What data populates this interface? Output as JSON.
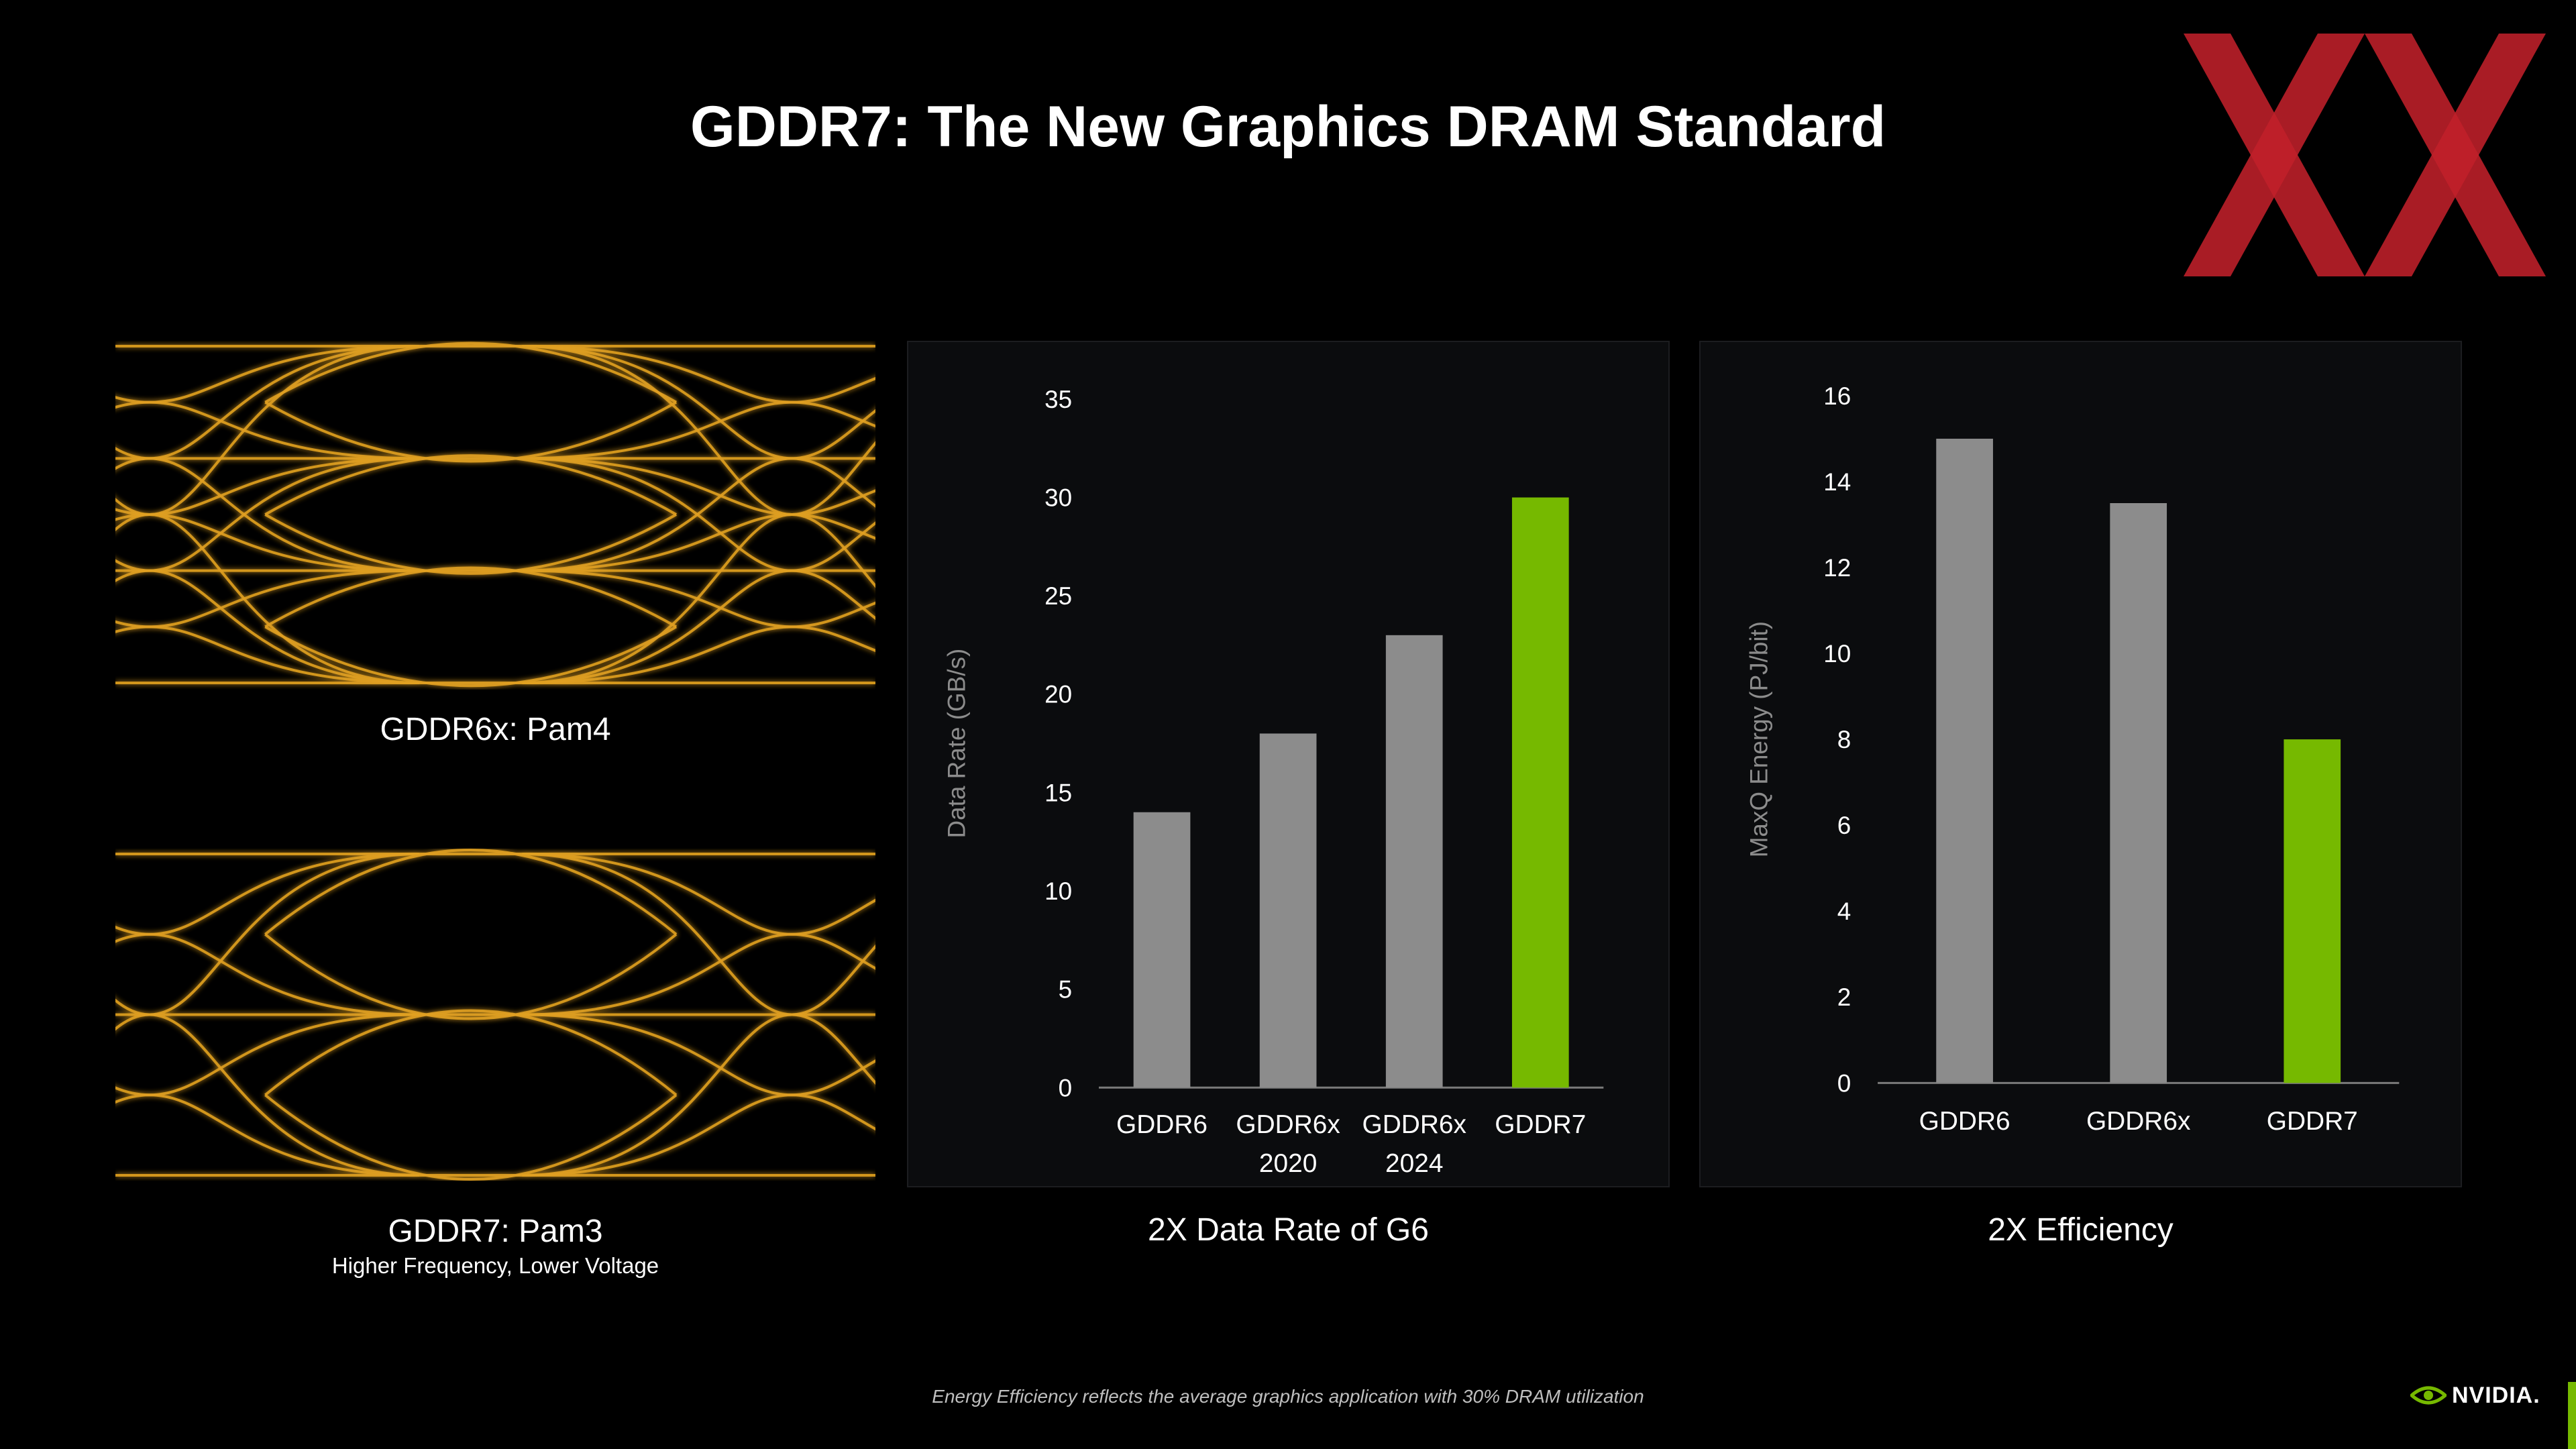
{
  "title": "GDDR7: The New Graphics DRAM Standard",
  "eye_diagrams": [
    {
      "caption": "GDDR6x: Pam4",
      "levels": 4
    },
    {
      "caption": "GDDR7: Pam3",
      "subcaption": "Higher Frequency, Lower Voltage",
      "levels": 3
    }
  ],
  "colors": {
    "gray_bar": "#8c8c8c",
    "green_bar": "#76b900",
    "eye": "#e0a020",
    "logo": "#c0202a"
  },
  "chart_data": [
    {
      "type": "bar",
      "title": "2X Data Rate of G6",
      "ylabel": "Data Rate (GB/s)",
      "xlabel": "",
      "categories": [
        [
          "GDDR6"
        ],
        [
          "GDDR6x",
          "2020"
        ],
        [
          "GDDR6x",
          "2024"
        ],
        [
          "GDDR7"
        ]
      ],
      "values": [
        14,
        18,
        23,
        30
      ],
      "highlight_index": 3,
      "ylim": [
        0,
        35
      ],
      "yticks": [
        0,
        5,
        10,
        15,
        20,
        25,
        30,
        35
      ]
    },
    {
      "type": "bar",
      "title": "2X Efficiency",
      "ylabel": "MaxQ Energy (PJ/bit)",
      "xlabel": "",
      "categories": [
        [
          "GDDR6"
        ],
        [
          "GDDR6x"
        ],
        [
          "GDDR7"
        ]
      ],
      "values": [
        15,
        13.5,
        8
      ],
      "highlight_index": 2,
      "ylim": [
        0,
        16
      ],
      "yticks": [
        0,
        2,
        4,
        6,
        8,
        10,
        12,
        14,
        16
      ]
    }
  ],
  "footnote": "Energy Efficiency reflects the average graphics application with 30% DRAM utilization",
  "brand": "NVIDIA."
}
